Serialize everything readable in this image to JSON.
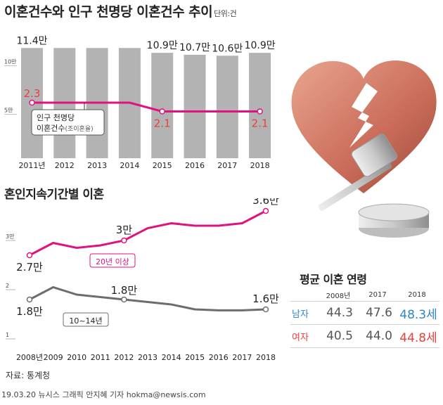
{
  "header": {
    "title": "이혼건수와 인구 천명당 이혼건수 추이",
    "unit": "단위:건"
  },
  "section2": {
    "title": "혼인지속기간별 이혼"
  },
  "avg_age": {
    "title": "평균 이혼 연령",
    "years": [
      "2008년",
      "2017",
      "2018"
    ],
    "rows": [
      {
        "label": "남자",
        "values": [
          "44.3",
          "47.6",
          "48.3세"
        ]
      },
      {
        "label": "여자",
        "values": [
          "40.5",
          "44.0",
          "44.8세"
        ]
      }
    ]
  },
  "source": "자료: 통계청",
  "credit": "19.03.20 뉴시스 그래픽 안지혜 기자 hokma@newsis.com",
  "colors": {
    "bar": "#b3b3b3",
    "rate_line": "#e0137e",
    "rate_label": "#e8413c",
    "gray_line": "#6d6d6d",
    "male": "#2c86c8",
    "female": "#e8413c"
  },
  "chart_data": [
    {
      "type": "bar",
      "title": "이혼건수와 인구 천명당 이혼건수 추이",
      "categories": [
        "2011년",
        "2012",
        "2013",
        "2014",
        "2015",
        "2016",
        "2017",
        "2018"
      ],
      "values": [
        114000,
        114000,
        114000,
        114000,
        109000,
        107000,
        106000,
        109000
      ],
      "value_labels": [
        "11.4만",
        "",
        "",
        "",
        "10.9만",
        "10.7만",
        "10.6만",
        "10.9만"
      ],
      "yticks": [
        "10만",
        "5만"
      ],
      "ylim": [
        0,
        120000
      ],
      "grid": false,
      "series": [
        {
          "name": "인구 천명당 이혼건수",
          "name_suffix": "(조이혼율)",
          "values": [
            2.3,
            2.3,
            2.3,
            2.3,
            2.1,
            2.1,
            2.1,
            2.1
          ],
          "labels": [
            "2.3",
            "",
            "",
            "",
            "2.1",
            "",
            "",
            "2.1"
          ],
          "prefix": "인구 천명당"
        }
      ]
    },
    {
      "type": "line",
      "title": "혼인지속기간별 이혼",
      "categories": [
        "2008년",
        "2009",
        "2010",
        "2011",
        "2012",
        "2013",
        "2014",
        "2015",
        "2016",
        "2017",
        "2018"
      ],
      "yticks": [
        "3만",
        "2",
        "1"
      ],
      "ylim": [
        10000,
        40000
      ],
      "grid": false,
      "series": [
        {
          "name": "20년 이상",
          "values": [
            27000,
            29500,
            28500,
            29000,
            30000,
            32500,
            33500,
            33000,
            33000,
            33500,
            36000
          ],
          "labels": [
            "2.7만",
            "",
            "",
            "",
            "3만",
            "",
            "",
            "",
            "",
            "",
            "3.6만"
          ]
        },
        {
          "name": "10~14년",
          "values": [
            18000,
            20500,
            19000,
            18500,
            18000,
            17500,
            17000,
            16000,
            15800,
            15800,
            16000
          ],
          "labels": [
            "1.8만",
            "",
            "",
            "",
            "1.8만",
            "",
            "",
            "",
            "",
            "",
            "1.6만"
          ]
        }
      ]
    }
  ]
}
